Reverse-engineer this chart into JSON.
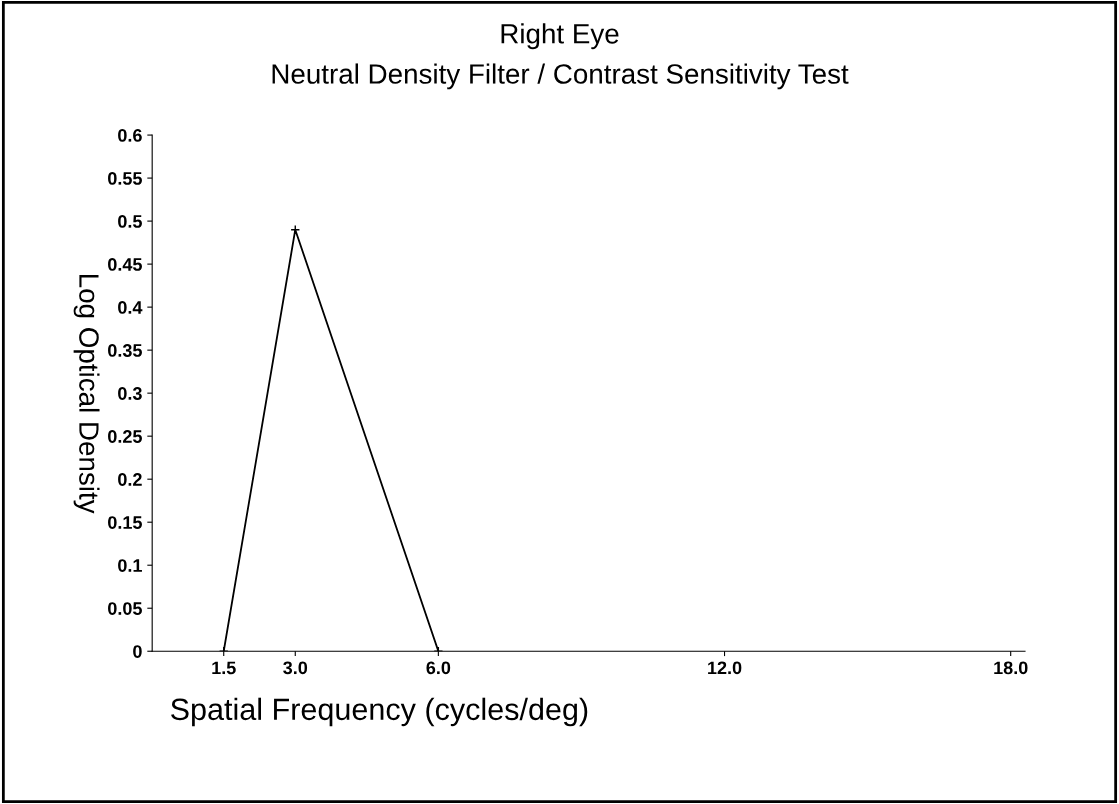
{
  "chart_data": {
    "type": "line",
    "title": "Right Eye",
    "subtitle": "Neutral Density Filter / Contrast Sensitivity Test",
    "xlabel": "Spatial Frequency (cycles/deg)",
    "ylabel": "Log Optical Density",
    "x": [
      1.5,
      3.0,
      6.0
    ],
    "values": [
      0,
      0.49,
      0
    ],
    "color": "#000000",
    "marker": "cross",
    "xlim": [
      0,
      18.3
    ],
    "xticks": [
      1.5,
      {
        "value": 3,
        "label": "3.0"
      },
      {
        "value": 6,
        "label": "6.0"
      },
      {
        "value": 12,
        "label": "12.0"
      },
      {
        "value": 18,
        "label": "18.0"
      }
    ],
    "ylim": [
      0,
      0.6
    ],
    "yticks": [
      0,
      0.05,
      0.1,
      0.15,
      0.2,
      0.25,
      0.3,
      0.35,
      0.4,
      0.45,
      0.5,
      0.55,
      0.6
    ],
    "grid": false,
    "legend": false
  }
}
